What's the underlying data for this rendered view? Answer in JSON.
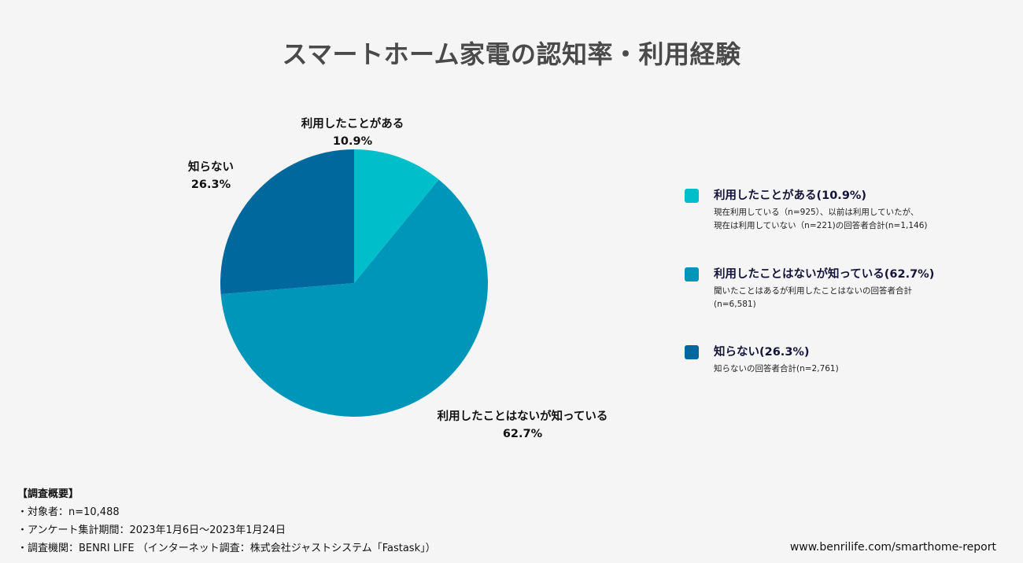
{
  "title": "スマートホーム家電の認知率・利用経験",
  "chart_data": {
    "type": "pie",
    "title": "スマートホーム家電の認知率・利用経験",
    "start_angle_deg": 0,
    "direction": "clockwise",
    "slices": [
      {
        "label": "利用したことがある",
        "value": 10.9,
        "value_label": "10.9%",
        "color": "#00bfca"
      },
      {
        "label": "利用したことはないが知っている",
        "value": 62.7,
        "value_label": "62.7%",
        "color": "#0096b9"
      },
      {
        "label": "知らない",
        "value": 26.3,
        "value_label": "26.3%",
        "color": "#01689e"
      }
    ]
  },
  "legend": {
    "items": [
      {
        "title": "利用したことがある(10.9%)",
        "desc1": "現在利用している（n=925）、以前は利用していたが、",
        "desc2": "現在は利用していない（n=221)の回答者合計(n=1,146)",
        "color": "#00bfca"
      },
      {
        "title": "利用したことはないが知っている(62.7%)",
        "desc1": "聞いたことはあるが利用したことはないの回答者合計",
        "desc2": "(n=6,581)",
        "color": "#0096b9"
      },
      {
        "title": "知らない(26.3%)",
        "desc1": "知らないの回答者合計(n=2,761)",
        "desc2": "",
        "color": "#01689e"
      }
    ]
  },
  "survey": {
    "heading": "【調査概要】",
    "line1": "・対象者：n=10,488",
    "line2": "・アンケート集計期間：2023年1月6日〜2023年1月24日",
    "line3": "・調査機関：BENRI LIFE （インターネット調査：株式会社ジャストシステム「Fastask」）"
  },
  "source_url": "www.benrilife.com/smarthome-report"
}
